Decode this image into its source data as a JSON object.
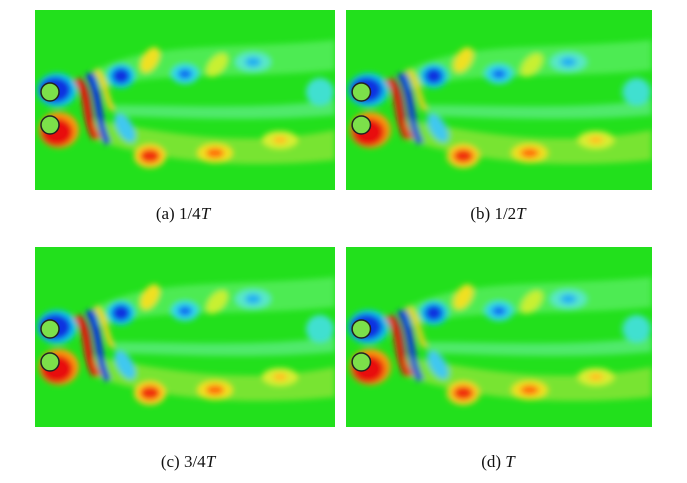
{
  "panels": [
    {
      "tag": "(a)",
      "fraction": "1/4",
      "period": "T"
    },
    {
      "tag": "(b)",
      "fraction": "1/2",
      "period": "T"
    },
    {
      "tag": "(c)",
      "fraction": "3/4",
      "period": "T"
    },
    {
      "tag": "(d)",
      "period": "T"
    }
  ]
}
